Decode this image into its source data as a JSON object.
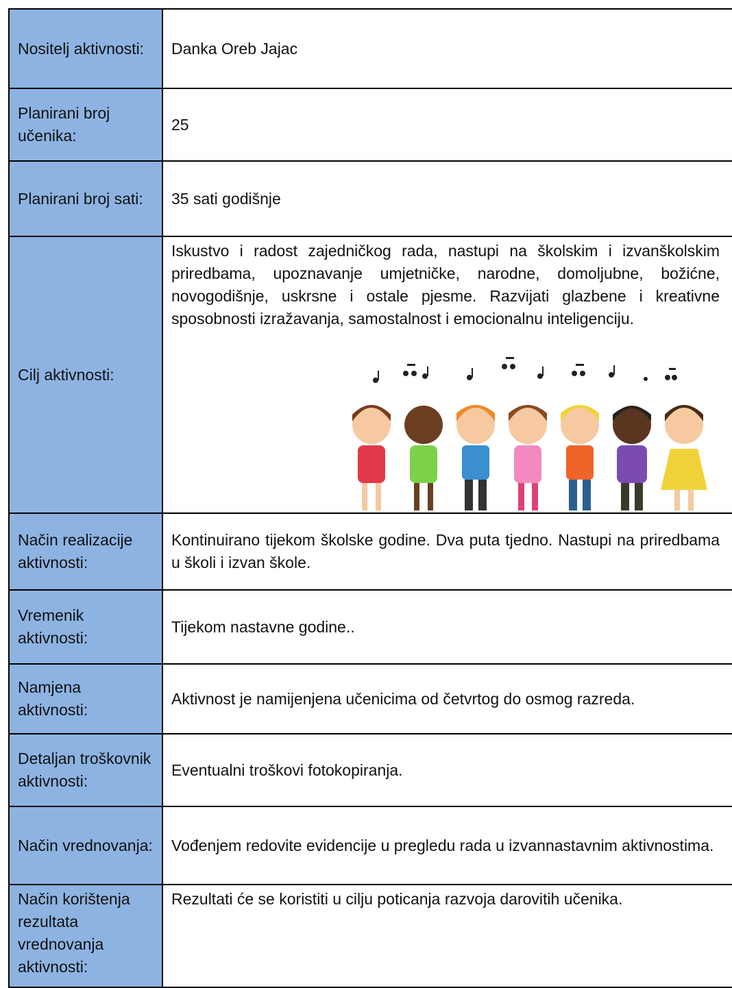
{
  "rows": [
    {
      "label": "Nositelj aktivnosti:",
      "value": "Danka Oreb Jajac"
    },
    {
      "label": "Planirani broj učenika:",
      "value": "25"
    },
    {
      "label": "Planirani broj sati:",
      "value": "35 sati godišnje"
    },
    {
      "label": "Cilj aktivnosti:",
      "value": "Iskustvo i radost zajedničkog rada, nastupi na školskim i izvanškolskim priredbama, upoznavanje umjetničke, narodne, domoljubne, božićne, novogodišnje, uskrsne i ostale pjesme. Razvijati glazbene i kreativne sposobnosti izražavanja, samostalnost i emocionalnu inteligenciju."
    },
    {
      "label": "Način realizacije aktivnosti:",
      "value": "Kontinuirano tijekom školske godine. Dva puta tjedno. Nastupi na priredbama u školi i izvan škole."
    },
    {
      "label": "Vremenik aktivnosti:",
      "value": "Tijekom nastavne godine.."
    },
    {
      "label": "Namjena aktivnosti:",
      "value": "Aktivnost je namijenjena učenicima od četvrtog do osmog razreda."
    },
    {
      "label": "Detaljan troškovnik aktivnosti:",
      "value": "Eventualni troškovi fotokopiranja."
    },
    {
      "label": "Način vrednovanja:",
      "value": "Vođenjem redovite evidencije u pregledu rada u izvannastavnim aktivnostima."
    },
    {
      "label": "Način korištenja rezultata vrednovanja aktivnosti:",
      "value": "Rezultati će se koristiti u cilju poticanja razvoja darovitih učenika."
    }
  ]
}
